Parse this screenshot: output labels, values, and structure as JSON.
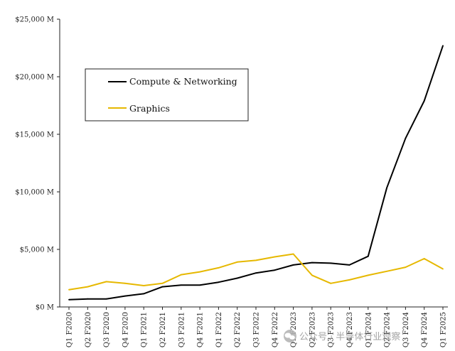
{
  "chart_data": {
    "type": "line",
    "title": "",
    "xlabel": "",
    "ylabel": "",
    "ylim": [
      0,
      25000
    ],
    "yticks": [
      0,
      5000,
      10000,
      15000,
      20000,
      25000
    ],
    "ytick_labels": [
      "$0 M",
      "$5,000 M",
      "$10,000 M",
      "$15,000 M",
      "$20,000 M",
      "$25,000 M"
    ],
    "grid": false,
    "legend_position": "upper-left-inside",
    "categories": [
      "Q1 F2020",
      "Q2 F2020",
      "Q3 F2020",
      "Q4 F2020",
      "Q1 F2021",
      "Q2 F2021",
      "Q3 F2021",
      "Q4 F2021",
      "Q1 F2022",
      "Q2 F2022",
      "Q3 F2022",
      "Q4 F2022",
      "Q1 F2023",
      "Q2 F2023",
      "Q3 F2023",
      "Q4 F2023",
      "Q1 F2024",
      "Q2 F2024",
      "Q3 F2024",
      "Q4 F2024",
      "Q1 F2025"
    ],
    "series": [
      {
        "name": "Compute & Networking",
        "color": "#000000",
        "values": [
          630,
          700,
          700,
          950,
          1150,
          1750,
          1900,
          1900,
          2150,
          2500,
          2950,
          3200,
          3650,
          3850,
          3800,
          3650,
          4400,
          10350,
          14650,
          17900,
          22700
        ]
      },
      {
        "name": "Graphics",
        "color": "#e6b800",
        "values": [
          1500,
          1750,
          2200,
          2050,
          1850,
          2050,
          2800,
          3050,
          3400,
          3900,
          4050,
          4350,
          4600,
          2750,
          2050,
          2350,
          2750,
          3100,
          3450,
          4200,
          3300
        ]
      }
    ]
  },
  "watermark": {
    "text": "公众号 · 半导体行业观察",
    "icon": "wechat-icon"
  }
}
